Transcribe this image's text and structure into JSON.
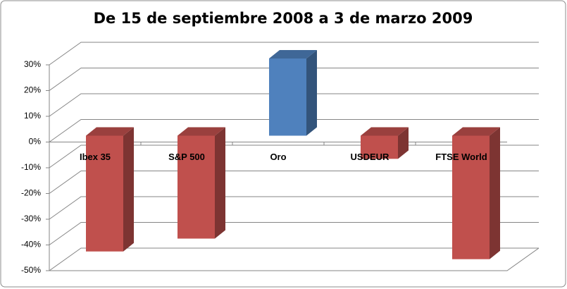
{
  "chart_data": {
    "type": "bar3d",
    "title": "De 15 de septiembre 2008 a 3 de marzo  2009",
    "categories": [
      "Ibex 35",
      "S&P 500",
      "Oro",
      "USDEUR",
      "FTSE World"
    ],
    "values": [
      -45,
      -40,
      30,
      -9,
      -48
    ],
    "colors": [
      "#c0504d",
      "#c0504d",
      "#4f81bd",
      "#c0504d",
      "#c0504d"
    ],
    "ylim": [
      -50,
      30
    ],
    "yticks": [
      {
        "value": -50,
        "label": "-50%"
      },
      {
        "value": -40,
        "label": "-40%"
      },
      {
        "value": -30,
        "label": "-30%"
      },
      {
        "value": -20,
        "label": "-20%"
      },
      {
        "value": -10,
        "label": "-10%"
      },
      {
        "value": 0,
        "label": "0%"
      },
      {
        "value": 10,
        "label": "10%"
      },
      {
        "value": 20,
        "label": "20%"
      },
      {
        "value": 30,
        "label": "30%"
      }
    ],
    "grid": true
  }
}
